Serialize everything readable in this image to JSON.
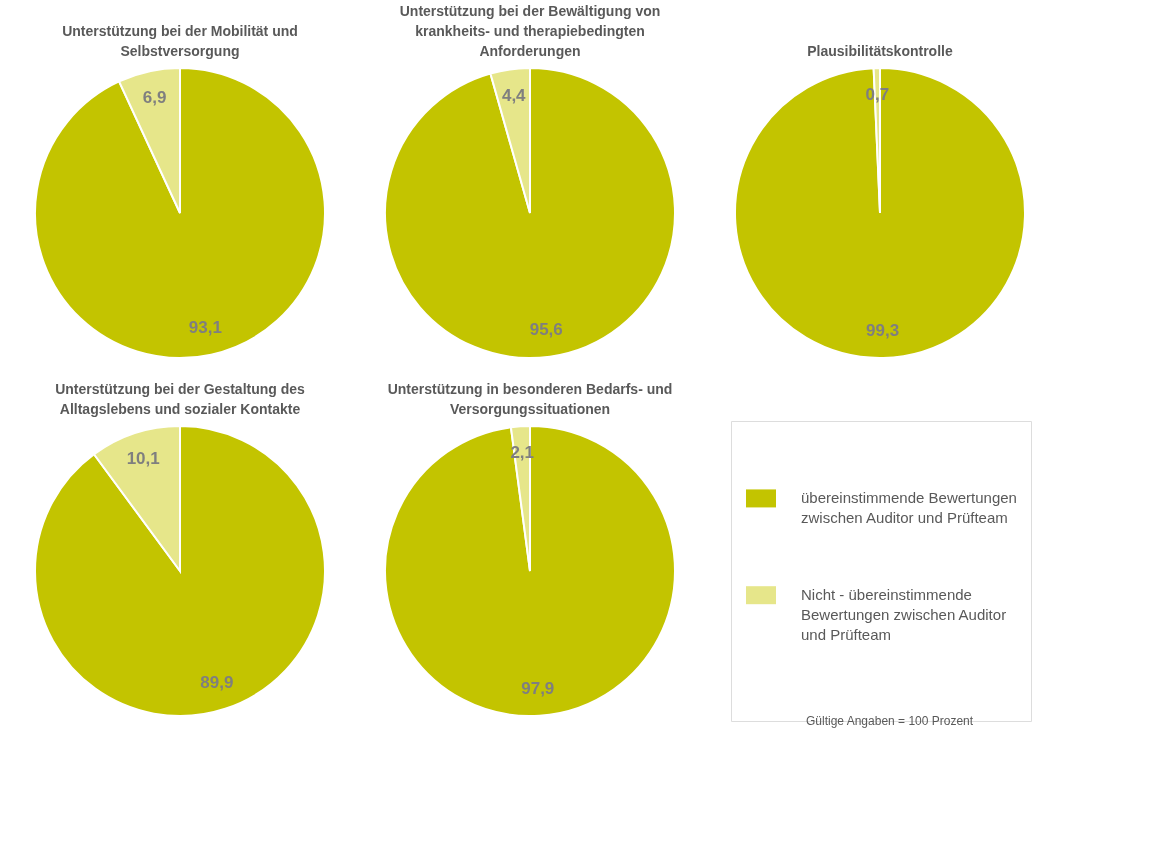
{
  "chart_data": [
    {
      "type": "pie",
      "title": "Unterstützung bei der Mobilität und Selbstversorgung",
      "categories": [
        "übereinstimmende Bewertungen zwischen Auditor und Prüfteam",
        "Nicht - übereinstimmende Bewertungen zwischen Auditor und Prüfteam"
      ],
      "values": [
        93.1,
        6.9
      ],
      "value_labels": [
        "93,1",
        "6,9"
      ],
      "colors": [
        "#c3c400",
        "#e6e68a"
      ],
      "legend": "right"
    },
    {
      "type": "pie",
      "title": "Unterstützung bei der Bewältigung von krankheits- und therapiebedingten Anforderungen",
      "categories": [
        null,
        null
      ],
      "values": [
        95.6,
        4.4
      ],
      "value_labels": [
        "95,6",
        "4,4"
      ],
      "colors": [
        "#c3c400",
        "#e6e68a"
      ]
    },
    {
      "type": "pie",
      "title": "Plausibilitätskontrolle",
      "categories": [
        null,
        null
      ],
      "values": [
        99.3,
        0.7
      ],
      "value_labels": [
        "99,3",
        "0,7"
      ],
      "colors": [
        "#c3c400",
        "#e6e68a"
      ]
    },
    {
      "type": "pie",
      "title": "Unterstützung bei der Gestaltung des Alltagslebens und sozialer Kontakte",
      "categories": [
        null,
        null
      ],
      "values": [
        89.9,
        10.1
      ],
      "value_labels": [
        "89,9",
        "10,1"
      ],
      "colors": [
        "#c3c400",
        "#e6e68a"
      ]
    },
    {
      "type": "pie",
      "title": "Unterstützung in besonderen Bedarfs- und Versorgungssituationen",
      "categories": [
        null,
        null
      ],
      "values": [
        97.9,
        2.1
      ],
      "value_labels": [
        "97,9",
        "2,1"
      ],
      "colors": [
        "#c3c400",
        "#e6e68a"
      ],
      "annotations": [
        "Gültige Angaben = 100 Prozent"
      ]
    }
  ]
}
